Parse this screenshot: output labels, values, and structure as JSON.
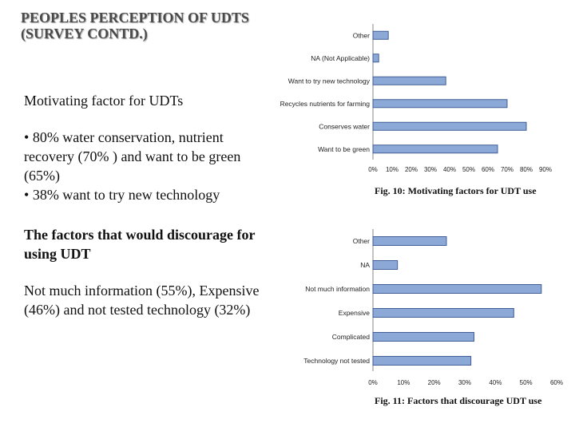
{
  "title_line1": "PEOPLES PERCEPTION OF UDTS",
  "title_line2": "(SURVEY CONTD.)",
  "section1": {
    "heading": "Motivating factor for UDTs",
    "bullets": [
      "80% water conservation, nutrient recovery (70% ) and want to be green (65%)",
      "38% want to try new technology"
    ]
  },
  "section2": {
    "heading": "The factors that would discourage for using UDT",
    "text": "Not much information (55%), Expensive (46%) and not tested technology  (32%)"
  },
  "chart_data": [
    {
      "type": "bar",
      "orientation": "horizontal",
      "title": "Fig. 10: Motivating factors for UDT use",
      "categories": [
        "Other",
        "NA (Not Applicable)",
        "Want to try new technology",
        "Recycles nutrients for farming",
        "Conserves water",
        "Want to be green"
      ],
      "values": [
        8,
        3,
        38,
        70,
        80,
        65
      ],
      "xlim": [
        0,
        90
      ],
      "ticks": [
        "0%",
        "10%",
        "20%",
        "30%",
        "40%",
        "50%",
        "60%",
        "70%",
        "80%",
        "90%"
      ],
      "bar_color": "#8ca8d6",
      "bar_border": "#3f5f96"
    },
    {
      "type": "bar",
      "orientation": "horizontal",
      "title": "Fig. 11: Factors that discourage UDT use",
      "categories": [
        "Other",
        "NA",
        "Not much information",
        "Expensive",
        "Complicated",
        "Technology not tested"
      ],
      "values": [
        24,
        8,
        55,
        46,
        33,
        32
      ],
      "xlim": [
        0,
        60
      ],
      "ticks": [
        "0%",
        "10%",
        "20%",
        "30%",
        "40%",
        "50%",
        "60%"
      ],
      "bar_color": "#8ca8d6",
      "bar_border": "#3f5f96"
    }
  ]
}
